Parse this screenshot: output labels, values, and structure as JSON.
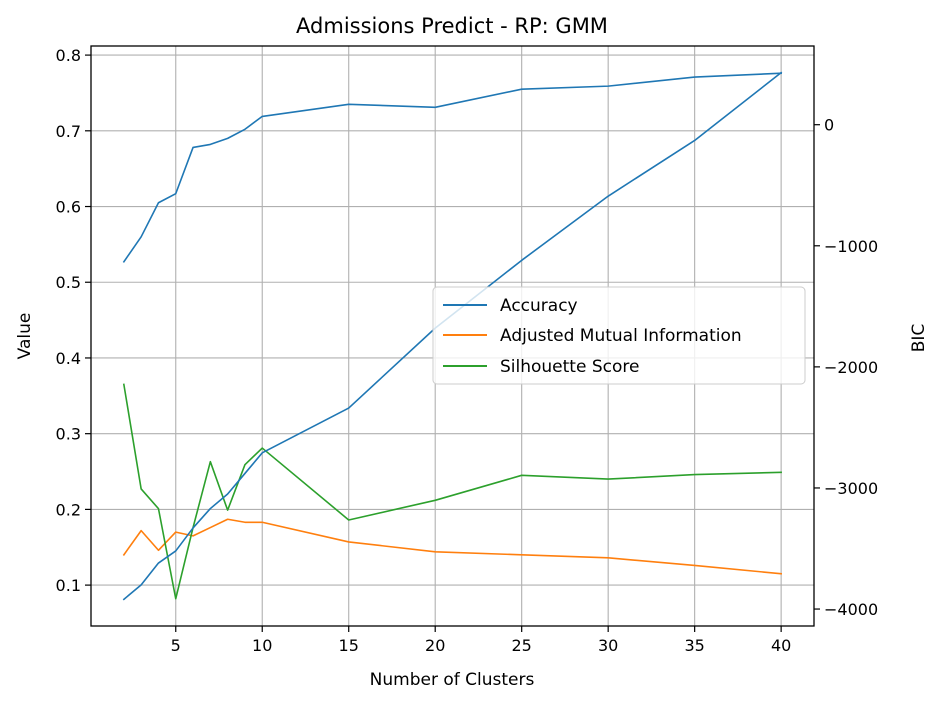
{
  "chart_data": {
    "type": "line",
    "title": "Admissions Predict - RP: GMM",
    "xlabel": "Number of Clusters",
    "ylabel": "Value",
    "y2label": "BIC",
    "xlim": [
      0.1,
      41.9
    ],
    "ylim": [
      0.046,
      0.812
    ],
    "y2lim": [
      -4140,
      650
    ],
    "xticks": [
      5,
      10,
      15,
      20,
      25,
      30,
      35,
      40
    ],
    "yticks": [
      0.1,
      0.2,
      0.3,
      0.4,
      0.5,
      0.6,
      0.7,
      0.8
    ],
    "y2ticks": [
      -4000,
      -3000,
      -2000,
      -1000,
      0
    ],
    "grid": true,
    "legend_position": "center-right",
    "x": [
      2,
      3,
      4,
      5,
      6,
      7,
      8,
      9,
      10,
      15,
      20,
      25,
      30,
      35,
      40
    ],
    "series": [
      {
        "name": "Accuracy",
        "axis": "left",
        "color": "#1f77b4",
        "values": [
          0.527,
          0.56,
          0.605,
          0.617,
          0.678,
          0.682,
          0.69,
          0.702,
          0.719,
          0.735,
          0.731,
          0.755,
          0.759,
          0.771,
          0.776
        ]
      },
      {
        "name": "Adjusted Mutual Information",
        "axis": "left",
        "color": "#ff7f0e",
        "values": [
          0.14,
          0.172,
          0.146,
          0.17,
          0.165,
          0.176,
          0.187,
          0.183,
          0.183,
          0.157,
          0.144,
          0.14,
          0.136,
          0.126,
          0.115
        ]
      },
      {
        "name": "Silhouette Score",
        "axis": "left",
        "color": "#2ca02c",
        "values": [
          0.365,
          0.227,
          0.201,
          0.082,
          0.176,
          0.263,
          0.199,
          0.259,
          0.281,
          0.186,
          0.212,
          0.245,
          0.24,
          0.246,
          0.249
        ]
      },
      {
        "axis": "right",
        "color": "#1f77b4",
        "values": [
          -3920,
          -3800,
          -3620,
          -3520,
          -3330,
          -3170,
          -3050,
          -2880,
          -2710,
          -2340,
          -1680,
          -1120,
          -590,
          -130,
          430
        ]
      }
    ]
  }
}
